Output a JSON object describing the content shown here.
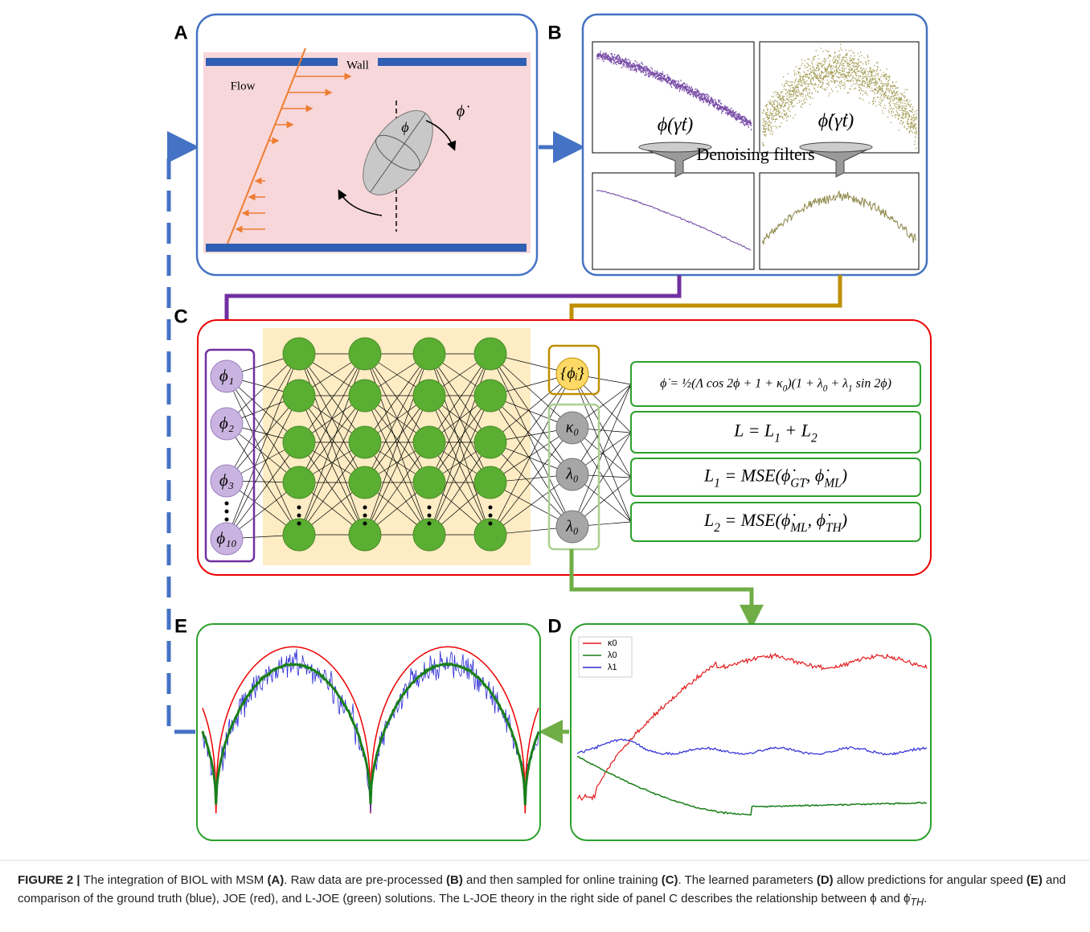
{
  "panels": {
    "A": {
      "label": "A",
      "wall": "Wall",
      "flow": "Flow",
      "angle": "ϕ",
      "rate": "ϕ̇"
    },
    "B": {
      "label": "B",
      "filter": "Denoising filters",
      "signal1": "ϕ(γ̇t)",
      "signal2": "ϕ̇(γ̇t)"
    },
    "C": {
      "label": "C",
      "inputs": [
        "ϕ₁",
        "ϕ₂",
        "ϕ₃",
        "ϕ₁₀"
      ],
      "outputs": [
        "{ϕ̇ᵢ}",
        "κ₀",
        "λ₀",
        "λ₀"
      ],
      "equations": [
        [
          {
            "t": "ϕ̇ = ½(Λ cos 2ϕ + 1 + κ"
          },
          {
            "t": "0",
            "sub": true
          },
          {
            "t": ")(1 + λ"
          },
          {
            "t": "0",
            "sub": true
          },
          {
            "t": " + λ"
          },
          {
            "t": "1",
            "sub": true
          },
          {
            "t": " sin 2ϕ)"
          }
        ],
        [
          {
            "t": "L = L"
          },
          {
            "t": "1",
            "sub": true
          },
          {
            "t": " + L"
          },
          {
            "t": "2",
            "sub": true
          }
        ],
        [
          {
            "t": "L"
          },
          {
            "t": "1",
            "sub": true
          },
          {
            "t": " = MSE(ϕ̇"
          },
          {
            "t": "GT",
            "sub": true
          },
          {
            "t": ", ϕ̇"
          },
          {
            "t": "ML",
            "sub": true
          },
          {
            "t": ")"
          }
        ],
        [
          {
            "t": "L"
          },
          {
            "t": "2",
            "sub": true
          },
          {
            "t": " = MSE(ϕ̇"
          },
          {
            "t": "ML",
            "sub": true
          },
          {
            "t": ", ϕ̇"
          },
          {
            "t": "TH",
            "sub": true
          },
          {
            "t": ")"
          }
        ]
      ]
    },
    "D": {
      "label": "D",
      "legend": [
        {
          "name": "κ0",
          "color": "#e31a1c"
        },
        {
          "name": "λ0",
          "color": "#1a7f1a"
        },
        {
          "name": "λ1",
          "color": "#2b2bd6"
        }
      ]
    },
    "E": {
      "label": "E"
    }
  },
  "caption": {
    "parts": [
      {
        "text": "FIGURE 2 | ",
        "bold": true
      },
      {
        "text": "The integration of BIOL with MSM "
      },
      {
        "text": "(A)",
        "bold": true
      },
      {
        "text": ". Raw data are pre-processed "
      },
      {
        "text": "(B)",
        "bold": true
      },
      {
        "text": " and then sampled for online training "
      },
      {
        "text": "(C)",
        "bold": true
      },
      {
        "text": ". The learned parameters "
      },
      {
        "text": "(D)",
        "bold": true
      },
      {
        "text": " allow predictions for angular speed "
      },
      {
        "text": "(E)",
        "bold": true
      },
      {
        "text": " and comparison of the ground truth (blue), JOE (red), and L-JOE (green) solutions. The L-JOE theory in the right side of panel C describes the relationship between ϕ and ϕ̇"
      },
      {
        "text": "TH",
        "sub": true
      },
      {
        "text": "."
      }
    ]
  }
}
